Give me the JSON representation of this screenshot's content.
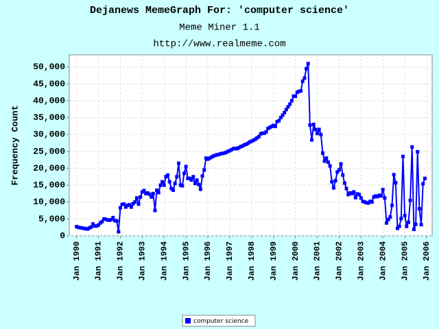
{
  "chart_data": {
    "type": "line",
    "title": "Dejanews MemeGraph For: 'computer science'",
    "subtitle": "Meme Miner 1.1",
    "source": "http://www.realmeme.com",
    "y_label": "Frequency Count",
    "grid": true,
    "legend": "bottom",
    "x": [
      "1990-01",
      "1990-02",
      "1990-03",
      "1990-04",
      "1990-05",
      "1990-06",
      "1990-07",
      "1990-08",
      "1990-09",
      "1990-10",
      "1990-11",
      "1990-12",
      "1991-01",
      "1991-02",
      "1991-03",
      "1991-04",
      "1991-05",
      "1991-06",
      "1991-07",
      "1991-08",
      "1991-09",
      "1991-10",
      "1991-11",
      "1991-12",
      "1992-01",
      "1992-02",
      "1992-03",
      "1992-04",
      "1992-05",
      "1992-06",
      "1992-07",
      "1992-08",
      "1992-09",
      "1992-10",
      "1992-11",
      "1992-12",
      "1993-01",
      "1993-02",
      "1993-03",
      "1993-04",
      "1993-05",
      "1993-06",
      "1993-07",
      "1993-08",
      "1993-09",
      "1993-10",
      "1993-11",
      "1993-12",
      "1994-01",
      "1994-02",
      "1994-03",
      "1994-04",
      "1994-05",
      "1994-06",
      "1994-07",
      "1994-08",
      "1994-09",
      "1994-10",
      "1994-11",
      "1994-12",
      "1995-01",
      "1995-02",
      "1995-03",
      "1995-04",
      "1995-05",
      "1995-06",
      "1995-07",
      "1995-08",
      "1995-09",
      "1995-10",
      "1995-11",
      "1995-12",
      "1996-01",
      "1996-02",
      "1996-03",
      "1996-04",
      "1996-05",
      "1996-06",
      "1996-07",
      "1996-08",
      "1996-09",
      "1996-10",
      "1996-11",
      "1996-12",
      "1997-01",
      "1997-02",
      "1997-03",
      "1997-04",
      "1997-05",
      "1997-06",
      "1997-07",
      "1997-08",
      "1997-09",
      "1997-10",
      "1997-11",
      "1997-12",
      "1998-01",
      "1998-02",
      "1998-03",
      "1998-04",
      "1998-05",
      "1998-06",
      "1998-07",
      "1998-08",
      "1998-09",
      "1998-10",
      "1998-11",
      "1998-12",
      "1999-01",
      "1999-02",
      "1999-03",
      "1999-04",
      "1999-05",
      "1999-06",
      "1999-07",
      "1999-08",
      "1999-09",
      "1999-10",
      "1999-11",
      "1999-12",
      "2000-01",
      "2000-02",
      "2000-03",
      "2000-04",
      "2000-05",
      "2000-06",
      "2000-07",
      "2000-08",
      "2000-09",
      "2000-10",
      "2000-11",
      "2000-12",
      "2001-01",
      "2001-02",
      "2001-03",
      "2001-04",
      "2001-05",
      "2001-06",
      "2001-07",
      "2001-08",
      "2001-09",
      "2001-10",
      "2001-11",
      "2001-12",
      "2002-01",
      "2002-02",
      "2002-03",
      "2002-04",
      "2002-05",
      "2002-06",
      "2002-07",
      "2002-08",
      "2002-09",
      "2002-10",
      "2002-11",
      "2002-12",
      "2003-01",
      "2003-02",
      "2003-03",
      "2003-04",
      "2003-05",
      "2003-06",
      "2003-07",
      "2003-08",
      "2003-09",
      "2003-10",
      "2003-11",
      "2003-12",
      "2004-01",
      "2004-02",
      "2004-03",
      "2004-04",
      "2004-05",
      "2004-06",
      "2004-07",
      "2004-08",
      "2004-09",
      "2004-10",
      "2004-11",
      "2004-12",
      "2005-01",
      "2005-02",
      "2005-03",
      "2005-04",
      "2005-05",
      "2005-06",
      "2005-07",
      "2005-08",
      "2005-09",
      "2005-10",
      "2005-11",
      "2005-12"
    ],
    "series": [
      {
        "name": "computer science",
        "color": "#0000ff",
        "values": [
          2700,
          2500,
          2400,
          2300,
          2200,
          2100,
          2000,
          2300,
          2600,
          3500,
          2900,
          2900,
          3200,
          3800,
          4200,
          5000,
          4900,
          4700,
          4600,
          4800,
          5400,
          4500,
          4400,
          1200,
          8300,
          9300,
          9400,
          8500,
          9000,
          9200,
          8500,
          9500,
          10000,
          11200,
          9400,
          11500,
          13000,
          13400,
          12500,
          12700,
          12300,
          11500,
          12500,
          7500,
          13500,
          12800,
          15000,
          16000,
          15000,
          17500,
          18000,
          16000,
          14000,
          13500,
          15500,
          17500,
          21500,
          15000,
          14800,
          18500,
          20500,
          17000,
          17000,
          16500,
          17500,
          15500,
          16500,
          15200,
          13800,
          17700,
          19500,
          23000,
          22700,
          23000,
          23300,
          23600,
          23800,
          24000,
          24100,
          24300,
          24400,
          24500,
          24700,
          25000,
          25200,
          25500,
          25800,
          25900,
          25800,
          26100,
          26400,
          26600,
          26900,
          27100,
          27400,
          27800,
          28000,
          28300,
          28600,
          29000,
          29400,
          30200,
          30400,
          30400,
          30800,
          31800,
          32100,
          32400,
          32700,
          32400,
          33800,
          34100,
          35000,
          35700,
          36500,
          37400,
          38200,
          39000,
          40000,
          41400,
          41300,
          42500,
          42800,
          42900,
          45800,
          46700,
          49500,
          51000,
          32800,
          28400,
          33000,
          31500,
          30300,
          31500,
          30000,
          24500,
          22100,
          23000,
          21800,
          20700,
          16000,
          14200,
          16300,
          18900,
          19500,
          21300,
          18000,
          15600,
          14000,
          12200,
          12700,
          12500,
          13000,
          11300,
          12400,
          12200,
          11200,
          10200,
          10000,
          9800,
          9700,
          10200,
          10000,
          11500,
          11800,
          11600,
          12000,
          11800,
          13700,
          11200,
          3800,
          4800,
          5600,
          9000,
          18100,
          15700,
          2200,
          2800,
          5100,
          23500,
          6000,
          2800,
          4000,
          10500,
          26300,
          1900,
          3400,
          24900,
          8000,
          3300,
          15400,
          17000
        ]
      }
    ],
    "xlim": [
      "1989-09",
      "2006-04"
    ],
    "xticks": [
      {
        "value": "1990-01",
        "label": "Jan 1990"
      },
      {
        "value": "1991-01",
        "label": "Jan 1991"
      },
      {
        "value": "1992-01",
        "label": "Jan 1992"
      },
      {
        "value": "1993-01",
        "label": "Jan 1993"
      },
      {
        "value": "1994-01",
        "label": "Jan 1994"
      },
      {
        "value": "1995-01",
        "label": "Jan 1995"
      },
      {
        "value": "1996-01",
        "label": "Jan 1996"
      },
      {
        "value": "1997-01",
        "label": "Jan 1997"
      },
      {
        "value": "1998-01",
        "label": "Jan 1998"
      },
      {
        "value": "1999-01",
        "label": "Jan 1999"
      },
      {
        "value": "2000-01",
        "label": "Jan 2000"
      },
      {
        "value": "2001-01",
        "label": "Jan 2001"
      },
      {
        "value": "2002-01",
        "label": "Jan 2002"
      },
      {
        "value": "2003-01",
        "label": "Jan 2003"
      },
      {
        "value": "2004-01",
        "label": "Jan 2004"
      },
      {
        "value": "2005-01",
        "label": "Jan 2005"
      },
      {
        "value": "2006-01",
        "label": "Jan 2006"
      }
    ],
    "ylim": [
      0,
      53600
    ],
    "yticks": [
      0,
      {
        "value": 5000,
        "label": "5,000"
      },
      {
        "value": 10000,
        "label": "10,000"
      },
      {
        "value": 15000,
        "label": "15,000"
      },
      {
        "value": 20000,
        "label": "20,000"
      },
      {
        "value": 25000,
        "label": "25,000"
      },
      {
        "value": 30000,
        "label": "30,000"
      },
      {
        "value": 35000,
        "label": "35,000"
      },
      {
        "value": 40000,
        "label": "40,000"
      },
      {
        "value": 45000,
        "label": "45,000"
      },
      {
        "value": 50000,
        "label": "50,000"
      }
    ]
  }
}
